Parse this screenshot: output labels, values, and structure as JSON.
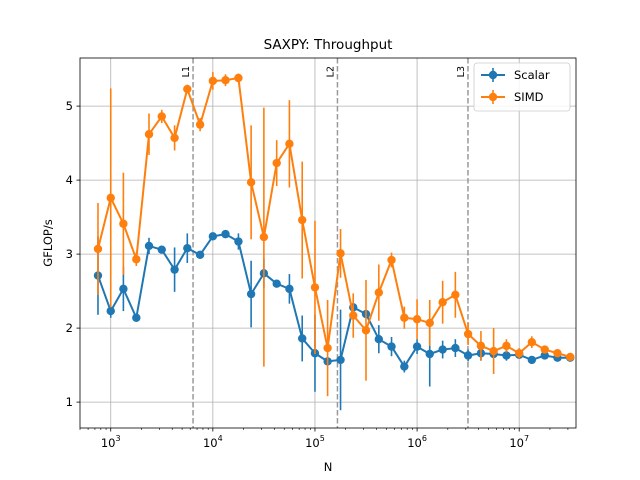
{
  "chart_data": {
    "type": "line",
    "title": "SAXPY: Throughput",
    "xlabel": "N",
    "ylabel": "GFLOP/s",
    "xscale": "log",
    "xlim": [
      500,
      36000000
    ],
    "ylim": [
      0.65,
      5.65
    ],
    "grid": true,
    "legend_position": "top-right",
    "x_ticks": [
      {
        "value": 1000,
        "base": "10",
        "exp": "3"
      },
      {
        "value": 10000,
        "base": "10",
        "exp": "4"
      },
      {
        "value": 100000,
        "base": "10",
        "exp": "5"
      },
      {
        "value": 1000000,
        "base": "10",
        "exp": "6"
      },
      {
        "value": 10000000,
        "base": "10",
        "exp": "7"
      }
    ],
    "y_ticks": [
      1,
      2,
      3,
      4,
      5
    ],
    "vertical_lines": [
      {
        "label": "L1",
        "x": 6400
      },
      {
        "label": "L2",
        "x": 166000
      },
      {
        "label": "L3",
        "x": 3150000
      }
    ],
    "series": [
      {
        "name": "Scalar",
        "color": "#1f77b4",
        "points": [
          {
            "x": 750,
            "y": 2.71,
            "err": 0.53
          },
          {
            "x": 1000,
            "y": 2.23,
            "err": 0.09
          },
          {
            "x": 1330,
            "y": 2.53,
            "err": 0.3
          },
          {
            "x": 1780,
            "y": 2.14,
            "err": 0.05
          },
          {
            "x": 2370,
            "y": 3.11,
            "err": 0.11
          },
          {
            "x": 3160,
            "y": 3.06,
            "err": 0.05
          },
          {
            "x": 4220,
            "y": 2.79,
            "err": 0.3
          },
          {
            "x": 5620,
            "y": 3.08,
            "err": 0.2
          },
          {
            "x": 7500,
            "y": 2.99,
            "err": 0.05
          },
          {
            "x": 10000,
            "y": 3.24,
            "err": 0.05
          },
          {
            "x": 13300,
            "y": 3.27,
            "err": 0.05
          },
          {
            "x": 17800,
            "y": 3.17,
            "err": 0.11
          },
          {
            "x": 23700,
            "y": 2.46,
            "err": 0.45
          },
          {
            "x": 31600,
            "y": 2.74,
            "err": 0.2
          },
          {
            "x": 42200,
            "y": 2.6,
            "err": 0.05
          },
          {
            "x": 56200,
            "y": 2.53,
            "err": 0.2
          },
          {
            "x": 75000,
            "y": 1.86,
            "err": 0.31
          },
          {
            "x": 100000,
            "y": 1.66,
            "err": 0.52
          },
          {
            "x": 133000,
            "y": 1.55,
            "err": 0.05
          },
          {
            "x": 178000,
            "y": 1.57,
            "err": 0.68
          },
          {
            "x": 237000,
            "y": 2.28,
            "err": 0.05
          },
          {
            "x": 316000,
            "y": 2.19,
            "err": 0.05
          },
          {
            "x": 422000,
            "y": 1.85,
            "err": 0.19
          },
          {
            "x": 562000,
            "y": 1.75,
            "err": 0.13
          },
          {
            "x": 750000,
            "y": 1.48,
            "err": 0.08
          },
          {
            "x": 1000000,
            "y": 1.75,
            "err": 0.1
          },
          {
            "x": 1330000,
            "y": 1.65,
            "err": 0.44
          },
          {
            "x": 1780000,
            "y": 1.71,
            "err": 0.12
          },
          {
            "x": 2370000,
            "y": 1.73,
            "err": 0.12
          },
          {
            "x": 3160000,
            "y": 1.63,
            "err": 0.08
          },
          {
            "x": 4220000,
            "y": 1.66,
            "err": 0.1
          },
          {
            "x": 5620000,
            "y": 1.65,
            "err": 0.05
          },
          {
            "x": 7500000,
            "y": 1.63,
            "err": 0.07
          },
          {
            "x": 10000000,
            "y": 1.64,
            "err": 0.05
          },
          {
            "x": 13300000,
            "y": 1.57,
            "err": 0.05
          },
          {
            "x": 17800000,
            "y": 1.63,
            "err": 0.05
          },
          {
            "x": 23700000,
            "y": 1.6,
            "err": 0.05
          },
          {
            "x": 31600000,
            "y": 1.6,
            "err": 0.05
          }
        ]
      },
      {
        "name": "SIMD",
        "color": "#ff7f0e",
        "points": [
          {
            "x": 750,
            "y": 3.07,
            "err": 0.62
          },
          {
            "x": 1000,
            "y": 3.76,
            "err": 1.48
          },
          {
            "x": 1330,
            "y": 3.41,
            "err": 0.69
          },
          {
            "x": 1780,
            "y": 2.93,
            "err": 0.09
          },
          {
            "x": 2370,
            "y": 4.62,
            "err": 0.28
          },
          {
            "x": 3160,
            "y": 4.86,
            "err": 0.09
          },
          {
            "x": 4220,
            "y": 4.57,
            "err": 0.17
          },
          {
            "x": 5620,
            "y": 5.23,
            "err": 0.06
          },
          {
            "x": 7500,
            "y": 4.75,
            "err": 0.09
          },
          {
            "x": 10000,
            "y": 5.34,
            "err": 0.12
          },
          {
            "x": 13300,
            "y": 5.35,
            "err": 0.08
          },
          {
            "x": 17800,
            "y": 5.38,
            "err": 0.06
          },
          {
            "x": 23700,
            "y": 3.97,
            "err": 0.77
          },
          {
            "x": 31600,
            "y": 3.23,
            "err": 1.75
          },
          {
            "x": 42200,
            "y": 4.23,
            "err": 0.31
          },
          {
            "x": 56200,
            "y": 4.49,
            "err": 0.59
          },
          {
            "x": 75000,
            "y": 3.46,
            "err": 0.79
          },
          {
            "x": 100000,
            "y": 2.55,
            "err": 0.9
          },
          {
            "x": 133000,
            "y": 1.73,
            "err": 0.65
          },
          {
            "x": 178000,
            "y": 3.01,
            "err": 0.33
          },
          {
            "x": 237000,
            "y": 2.17,
            "err": 0.3
          },
          {
            "x": 316000,
            "y": 1.97,
            "err": 0.68
          },
          {
            "x": 422000,
            "y": 2.48,
            "err": 0.38
          },
          {
            "x": 562000,
            "y": 2.92,
            "err": 0.1
          },
          {
            "x": 750000,
            "y": 2.14,
            "err": 0.15
          },
          {
            "x": 1000000,
            "y": 2.12,
            "err": 0.27
          },
          {
            "x": 1330000,
            "y": 2.07,
            "err": 0.31
          },
          {
            "x": 1780000,
            "y": 2.35,
            "err": 0.29
          },
          {
            "x": 2370000,
            "y": 2.45,
            "err": 0.31
          },
          {
            "x": 3160000,
            "y": 1.92,
            "err": 0.15
          },
          {
            "x": 4220000,
            "y": 1.76,
            "err": 0.2
          },
          {
            "x": 5620000,
            "y": 1.69,
            "err": 0.31
          },
          {
            "x": 7500000,
            "y": 1.76,
            "err": 0.09
          },
          {
            "x": 10000000,
            "y": 1.66,
            "err": 0.07
          },
          {
            "x": 13300000,
            "y": 1.81,
            "err": 0.08
          },
          {
            "x": 17800000,
            "y": 1.71,
            "err": 0.05
          },
          {
            "x": 23700000,
            "y": 1.66,
            "err": 0.05
          },
          {
            "x": 31600000,
            "y": 1.61,
            "err": 0.05
          }
        ]
      }
    ]
  }
}
